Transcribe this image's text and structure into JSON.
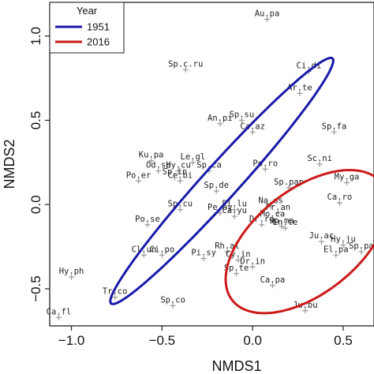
{
  "chart_data": {
    "type": "scatter",
    "xlabel": "NMDS1",
    "ylabel": "NMDS2",
    "xlim": [
      -1.12,
      0.67
    ],
    "ylim": [
      -0.72,
      1.2
    ],
    "x_ticks": [
      -1.0,
      -0.5,
      0.0,
      0.5
    ],
    "x_tick_labels": [
      "−1.0",
      "−0.5",
      "0.0",
      "0.5"
    ],
    "y_ticks": [
      -0.5,
      0.0,
      0.5,
      1.0
    ],
    "y_tick_labels": [
      "−0.5",
      "0.0",
      "0.5",
      "1.0"
    ],
    "grid": false,
    "legend": {
      "title": "Year",
      "placement": "top-left",
      "entries": [
        {
          "label": "1951",
          "color": "#1a1aaa"
        },
        {
          "label": "2016",
          "color": "#cc1a1a"
        }
      ]
    },
    "marker_color": "#999999",
    "points": [
      {
        "label": "Au.pa",
        "x": 0.08,
        "y": 1.1
      },
      {
        "label": "Ci.di",
        "x": 0.31,
        "y": 0.79
      },
      {
        "label": "Sp.c.ru",
        "x": -0.37,
        "y": 0.8
      },
      {
        "label": "Ar.te",
        "x": 0.26,
        "y": 0.66
      },
      {
        "label": "Sp.su",
        "x": -0.06,
        "y": 0.5
      },
      {
        "label": "An.pi",
        "x": -0.18,
        "y": 0.48
      },
      {
        "label": "Ca.az",
        "x": 0.0,
        "y": 0.43
      },
      {
        "label": "Sp.fa",
        "x": 0.45,
        "y": 0.43
      },
      {
        "label": "Ku.pa",
        "x": -0.56,
        "y": 0.26
      },
      {
        "label": "Le.gl",
        "x": -0.33,
        "y": 0.25
      },
      {
        "label": "Sc.ni",
        "x": 0.37,
        "y": 0.24
      },
      {
        "label": "Po.ro",
        "x": 0.07,
        "y": 0.21
      },
      {
        "label": "Od.sp",
        "x": -0.52,
        "y": 0.2
      },
      {
        "label": "Hy.cu",
        "x": -0.41,
        "y": 0.2
      },
      {
        "label": "Sp.ca",
        "x": -0.24,
        "y": 0.2
      },
      {
        "label": "Ce.bi",
        "x": -0.4,
        "y": 0.14
      },
      {
        "label": "Sp.in",
        "x": -0.43,
        "y": 0.16
      },
      {
        "label": "Po.er",
        "x": -0.63,
        "y": 0.14
      },
      {
        "label": "My.ga",
        "x": 0.52,
        "y": 0.13
      },
      {
        "label": "Sp.de",
        "x": -0.2,
        "y": 0.08
      },
      {
        "label": "Sp.pap",
        "x": 0.2,
        "y": 0.1
      },
      {
        "label": "Ca.ro",
        "x": 0.48,
        "y": 0.01
      },
      {
        "label": "Sp.cu",
        "x": -0.4,
        "y": -0.03
      },
      {
        "label": "Pl.lu",
        "x": -0.1,
        "y": -0.03
      },
      {
        "label": "Na.os",
        "x": 0.1,
        "y": -0.01
      },
      {
        "label": "Fr.an",
        "x": 0.14,
        "y": -0.05
      },
      {
        "label": "Pe.ay",
        "x": -0.18,
        "y": -0.05
      },
      {
        "label": "Ca.yu",
        "x": -0.1,
        "y": -0.07
      },
      {
        "label": "Mo.ca",
        "x": 0.11,
        "y": -0.09
      },
      {
        "label": "Po.se",
        "x": -0.58,
        "y": -0.12
      },
      {
        "label": "Dr.ro",
        "x": 0.05,
        "y": -0.12
      },
      {
        "label": "Sp.ma",
        "x": 0.16,
        "y": -0.13
      },
      {
        "label": "En.te",
        "x": 0.18,
        "y": -0.14
      },
      {
        "label": "Ju.ac",
        "x": 0.38,
        "y": -0.22
      },
      {
        "label": "Hy.ju",
        "x": 0.5,
        "y": -0.24
      },
      {
        "label": "El.pa",
        "x": 0.46,
        "y": -0.3
      },
      {
        "label": "Sp.pa",
        "x": 0.6,
        "y": -0.28
      },
      {
        "label": "Cl.un",
        "x": -0.6,
        "y": -0.3
      },
      {
        "label": "Ci.po",
        "x": -0.5,
        "y": -0.3
      },
      {
        "label": "Rh.al",
        "x": -0.14,
        "y": -0.28
      },
      {
        "label": "Cy.in",
        "x": -0.08,
        "y": -0.33
      },
      {
        "label": "Pi.sy",
        "x": -0.27,
        "y": -0.32
      },
      {
        "label": "Dr.in",
        "x": 0.0,
        "y": -0.37
      },
      {
        "label": "Sp.te",
        "x": -0.09,
        "y": -0.41
      },
      {
        "label": "Hy.ph",
        "x": -1.0,
        "y": -0.43
      },
      {
        "label": "Ca.pa",
        "x": 0.11,
        "y": -0.48
      },
      {
        "label": "Tr.co",
        "x": -0.76,
        "y": -0.55
      },
      {
        "label": "Sp.co",
        "x": -0.44,
        "y": -0.6
      },
      {
        "label": "Ju.bu",
        "x": 0.29,
        "y": -0.63
      },
      {
        "label": "Ca.fl",
        "x": -1.07,
        "y": -0.67
      }
    ],
    "ellipses": [
      {
        "name": "1951",
        "color": "#1a1aaa",
        "cx": -0.17,
        "cy": 0.14,
        "major_half": 0.95,
        "minor_half": 0.1,
        "angle_deg": 50
      },
      {
        "name": "2016",
        "color": "#cc1a1a",
        "cx": 0.3,
        "cy": -0.22,
        "major_half": 0.54,
        "minor_half": 0.3,
        "angle_deg": 42
      }
    ]
  }
}
